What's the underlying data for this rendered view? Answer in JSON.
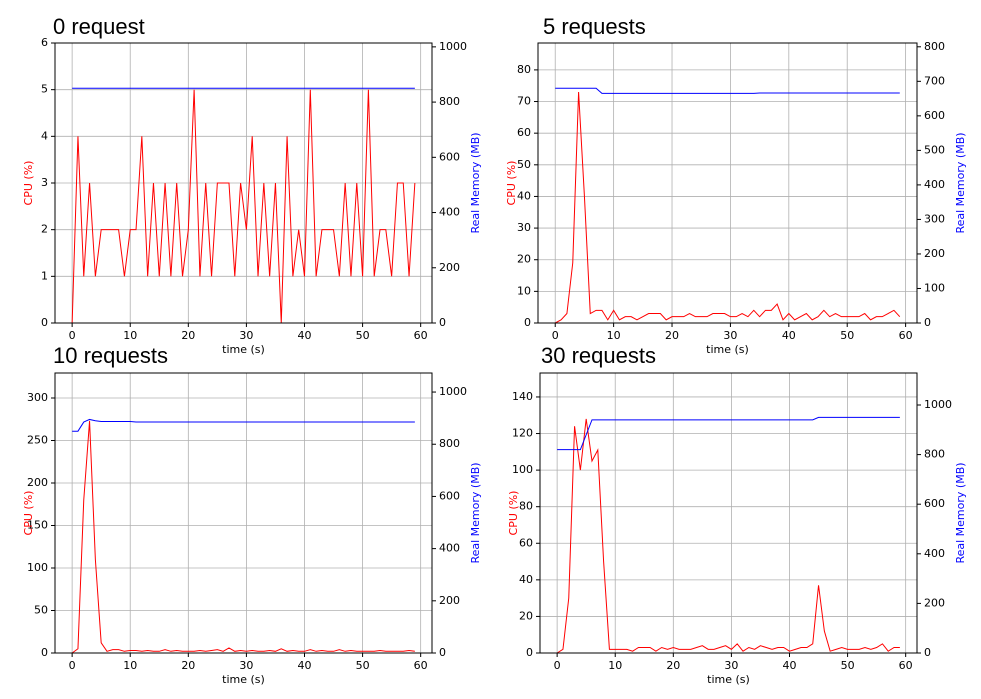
{
  "chart_data": [
    {
      "type": "line",
      "title": "0 request",
      "x_label": "time (s)",
      "y_label": "CPU (%)",
      "y2_label": "Real Memory (MB)",
      "x": [
        0,
        1,
        2,
        3,
        4,
        5,
        6,
        7,
        8,
        9,
        10,
        11,
        12,
        13,
        14,
        15,
        16,
        17,
        18,
        19,
        20,
        21,
        22,
        23,
        24,
        25,
        26,
        27,
        28,
        29,
        30,
        31,
        32,
        33,
        34,
        35,
        36,
        37,
        38,
        39,
        40,
        41,
        42,
        43,
        44,
        45,
        46,
        47,
        48,
        49,
        50,
        51,
        52,
        53,
        54,
        55,
        56,
        57,
        58,
        59
      ],
      "xlim": [
        -2.95,
        61.95
      ],
      "xticks": [
        0,
        10,
        20,
        30,
        40,
        50,
        60
      ],
      "ylim": [
        0,
        6
      ],
      "yticks": [
        0,
        1,
        2,
        3,
        4,
        5,
        6
      ],
      "y2lim": [
        0,
        1014
      ],
      "y2ticks": [
        0,
        200,
        400,
        600,
        800,
        1000
      ],
      "grid": true,
      "series": [
        {
          "name": "CPU (%)",
          "color": "#ff0000",
          "axis": "y",
          "values": [
            0,
            4,
            1,
            3,
            1,
            2,
            2,
            2,
            2,
            1,
            2,
            2,
            4,
            1,
            3,
            1,
            3,
            1,
            3,
            1,
            2,
            5,
            1,
            3,
            1,
            3,
            3,
            3,
            1,
            3,
            2,
            4,
            1,
            3,
            1,
            3,
            0,
            4,
            1,
            2,
            1,
            5,
            1,
            2,
            2,
            2,
            1,
            3,
            1,
            3,
            1,
            5,
            1,
            2,
            2,
            1,
            3,
            3,
            1,
            3
          ]
        },
        {
          "name": "Real Memory (MB)",
          "color": "#0000ff",
          "axis": "y2",
          "values": [
            850,
            850,
            850,
            850,
            850,
            850,
            850,
            850,
            850,
            850,
            850,
            850,
            850,
            850,
            850,
            850,
            850,
            850,
            850,
            850,
            850,
            850,
            850,
            850,
            850,
            850,
            850,
            850,
            850,
            850,
            850,
            850,
            850,
            850,
            850,
            850,
            850,
            850,
            850,
            850,
            850,
            850,
            850,
            850,
            850,
            850,
            850,
            850,
            850,
            850,
            850,
            850,
            850,
            850,
            850,
            850,
            850,
            850,
            850,
            850
          ]
        }
      ]
    },
    {
      "type": "line",
      "title": "5 requests",
      "x_label": "time (s)",
      "y_label": "CPU (%)",
      "y2_label": "Real Memory (MB)",
      "x": [
        0,
        1,
        2,
        3,
        4,
        5,
        6,
        7,
        8,
        9,
        10,
        11,
        12,
        13,
        14,
        15,
        16,
        17,
        18,
        19,
        20,
        21,
        22,
        23,
        24,
        25,
        26,
        27,
        28,
        29,
        30,
        31,
        32,
        33,
        34,
        35,
        36,
        37,
        38,
        39,
        40,
        41,
        42,
        43,
        44,
        45,
        46,
        47,
        48,
        49,
        50,
        51,
        52,
        53,
        54,
        55,
        56,
        57,
        58,
        59
      ],
      "xlim": [
        -2.95,
        61.95
      ],
      "xticks": [
        0,
        10,
        20,
        30,
        40,
        50,
        60
      ],
      "ylim": [
        0,
        88.5
      ],
      "yticks": [
        0,
        10,
        20,
        30,
        40,
        50,
        60,
        70,
        80
      ],
      "y2lim": [
        0,
        811
      ],
      "y2ticks": [
        0,
        100,
        200,
        300,
        400,
        500,
        600,
        700,
        800
      ],
      "grid": true,
      "series": [
        {
          "name": "CPU (%)",
          "color": "#ff0000",
          "axis": "y",
          "values": [
            0,
            1,
            3,
            19,
            73,
            40,
            3,
            4,
            4,
            1,
            4,
            1,
            2,
            2,
            1,
            2,
            3,
            3,
            3,
            1,
            2,
            2,
            2,
            3,
            2,
            2,
            2,
            3,
            3,
            3,
            2,
            2,
            3,
            2,
            4,
            2,
            4,
            4,
            6,
            1,
            3,
            1,
            2,
            3,
            1,
            2,
            4,
            2,
            3,
            2,
            2,
            2,
            2,
            3,
            1,
            2,
            2,
            3,
            4,
            2
          ]
        },
        {
          "name": "Real Memory (MB)",
          "color": "#0000ff",
          "axis": "y2",
          "values": [
            680,
            680,
            680,
            680,
            680,
            680,
            680,
            680,
            665,
            665,
            665,
            665,
            665,
            665,
            665,
            665,
            665,
            665,
            665,
            665,
            665,
            665,
            665,
            665,
            665,
            665,
            665,
            665,
            665,
            665,
            665,
            665,
            665,
            665,
            665,
            666,
            666,
            666,
            666,
            666,
            666,
            666,
            666,
            666,
            666,
            666,
            666,
            666,
            666,
            666,
            666,
            666,
            666,
            666,
            666,
            666,
            666,
            666,
            666,
            666
          ]
        }
      ]
    },
    {
      "type": "line",
      "title": "10 requests",
      "x_label": "time (s)",
      "y_label": "CPU (%)",
      "y2_label": "Real Memory (MB)",
      "x": [
        0,
        1,
        2,
        3,
        4,
        5,
        6,
        7,
        8,
        9,
        10,
        11,
        12,
        13,
        14,
        15,
        16,
        17,
        18,
        19,
        20,
        21,
        22,
        23,
        24,
        25,
        26,
        27,
        28,
        29,
        30,
        31,
        32,
        33,
        34,
        35,
        36,
        37,
        38,
        39,
        40,
        41,
        42,
        43,
        44,
        45,
        46,
        47,
        48,
        49,
        50,
        51,
        52,
        53,
        54,
        55,
        56,
        57,
        58,
        59
      ],
      "xlim": [
        -2.95,
        61.95
      ],
      "xticks": [
        0,
        10,
        20,
        30,
        40,
        50,
        60
      ],
      "ylim": [
        0,
        329.4
      ],
      "yticks": [
        0,
        50,
        100,
        150,
        200,
        250,
        300
      ],
      "y2lim": [
        0,
        1073
      ],
      "y2ticks": [
        0,
        200,
        400,
        600,
        800,
        1000
      ],
      "grid": true,
      "series": [
        {
          "name": "CPU (%)",
          "color": "#ff0000",
          "axis": "y",
          "values": [
            0,
            5,
            180,
            273,
            110,
            12,
            2,
            4,
            4,
            2,
            3,
            3,
            2,
            3,
            2,
            2,
            4,
            2,
            3,
            2,
            2,
            2,
            3,
            2,
            3,
            4,
            2,
            6,
            2,
            3,
            2,
            3,
            2,
            2,
            3,
            2,
            5,
            2,
            3,
            2,
            2,
            4,
            2,
            3,
            2,
            2,
            4,
            2,
            3,
            2,
            2,
            2,
            2,
            3,
            2,
            2,
            2,
            2,
            3,
            2
          ]
        },
        {
          "name": "Real Memory (MB)",
          "color": "#0000ff",
          "axis": "y2",
          "values": [
            850,
            850,
            885,
            895,
            890,
            887,
            887,
            887,
            887,
            887,
            887,
            885,
            885,
            885,
            885,
            885,
            885,
            885,
            885,
            885,
            885,
            885,
            885,
            885,
            885,
            885,
            885,
            885,
            885,
            885,
            885,
            885,
            885,
            885,
            885,
            885,
            885,
            885,
            885,
            885,
            885,
            885,
            885,
            885,
            885,
            885,
            885,
            885,
            885,
            885,
            885,
            885,
            885,
            885,
            885,
            885,
            885,
            885,
            885,
            885
          ]
        }
      ]
    },
    {
      "type": "line",
      "title": "30 requests",
      "x_label": "time (s)",
      "y_label": "CPU (%)",
      "y2_label": "Real Memory (MB)",
      "x": [
        0,
        1,
        2,
        3,
        4,
        5,
        6,
        7,
        8,
        9,
        10,
        11,
        12,
        13,
        14,
        15,
        16,
        17,
        18,
        19,
        20,
        21,
        22,
        23,
        24,
        25,
        26,
        27,
        28,
        29,
        30,
        31,
        32,
        33,
        34,
        35,
        36,
        37,
        38,
        39,
        40,
        41,
        42,
        43,
        44,
        45,
        46,
        47,
        48,
        49,
        50,
        51,
        52,
        53,
        54,
        55,
        56,
        57,
        58,
        59
      ],
      "xlim": [
        -2.95,
        61.95
      ],
      "xticks": [
        0,
        10,
        20,
        30,
        40,
        50,
        60
      ],
      "ylim": [
        0,
        153.1
      ],
      "yticks": [
        0,
        20,
        40,
        60,
        80,
        100,
        120,
        140
      ],
      "y2lim": [
        0,
        1129
      ],
      "y2ticks": [
        0,
        200,
        400,
        600,
        800,
        1000
      ],
      "grid": true,
      "series": [
        {
          "name": "CPU (%)",
          "color": "#ff0000",
          "axis": "y",
          "values": [
            0,
            2,
            30,
            124,
            100,
            128,
            105,
            111,
            50,
            2,
            2,
            2,
            2,
            1,
            3,
            3,
            3,
            1,
            3,
            2,
            3,
            2,
            2,
            2,
            3,
            4,
            2,
            2,
            3,
            4,
            2,
            5,
            1,
            3,
            2,
            4,
            3,
            2,
            3,
            3,
            1,
            2,
            3,
            3,
            5,
            37,
            12,
            1,
            2,
            3,
            2,
            2,
            2,
            3,
            2,
            3,
            5,
            1,
            3,
            3
          ]
        },
        {
          "name": "Real Memory (MB)",
          "color": "#0000ff",
          "axis": "y2",
          "values": [
            820,
            820,
            820,
            820,
            820,
            880,
            940,
            940,
            940,
            940,
            940,
            940,
            940,
            940,
            940,
            940,
            940,
            940,
            940,
            940,
            940,
            940,
            940,
            940,
            940,
            940,
            940,
            940,
            940,
            940,
            940,
            940,
            940,
            940,
            940,
            940,
            940,
            940,
            940,
            940,
            940,
            940,
            940,
            940,
            940,
            950,
            950,
            950,
            950,
            950,
            950,
            950,
            950,
            950,
            950,
            950,
            950,
            950,
            950,
            950
          ]
        }
      ]
    }
  ]
}
